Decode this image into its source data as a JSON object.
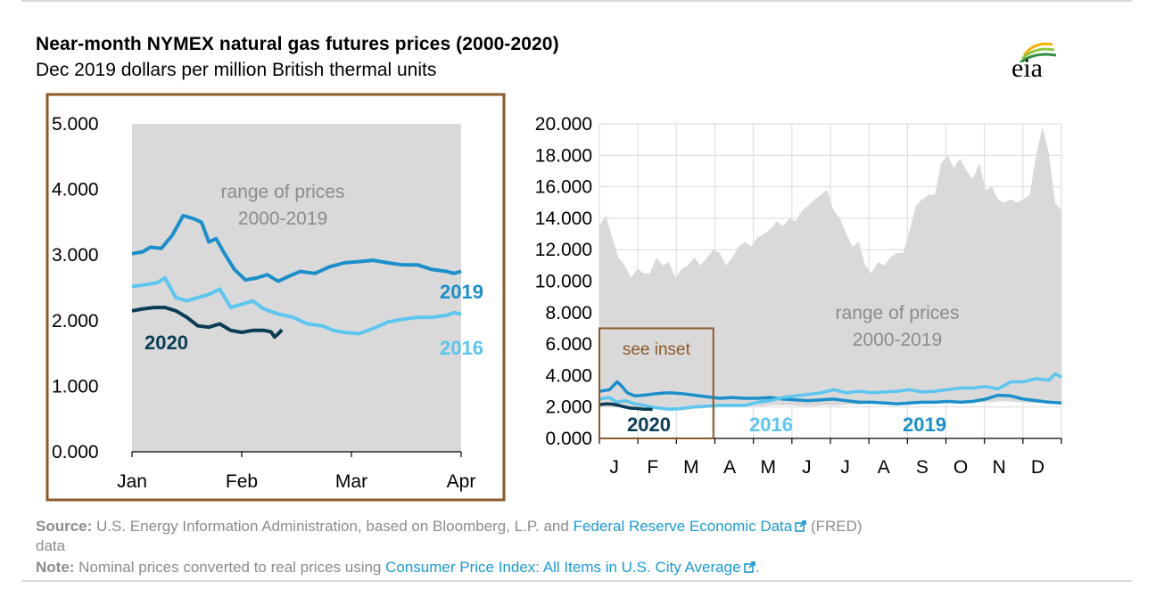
{
  "header": {
    "title": "Near-month NYMEX natural gas futures prices (2000-2020)",
    "subtitle": "Dec 2019 dollars per million British thermal units",
    "logo_text": "eia"
  },
  "colors": {
    "series_2019": "#1b8fcb",
    "series_2016": "#5bc6f0",
    "series_2020": "#0a3d55",
    "range_fill": "#d9d9d9",
    "inset_border": "#8b5a2b",
    "grid": "#d9d9d9",
    "link": "#1b9ad6"
  },
  "chart_data": [
    {
      "type": "line",
      "name": "inset",
      "xlabel": "",
      "ylabel": "",
      "x_ticks": [
        "Jan",
        "Feb",
        "Mar",
        "Apr"
      ],
      "y_ticks": [
        "0.000",
        "1.000",
        "2.000",
        "3.000",
        "4.000",
        "5.000"
      ],
      "xlim": [
        0,
        90
      ],
      "ylim": [
        0,
        5
      ],
      "range_band": {
        "label_line1": "range of prices",
        "label_line2": "2000-2019",
        "upper": 5.0,
        "lower": 0.0
      },
      "series": [
        {
          "name": "2019",
          "label": "2019",
          "x": [
            0,
            3,
            5,
            8,
            11,
            14,
            17,
            19,
            21,
            23,
            25,
            28,
            31,
            34,
            37,
            40,
            43,
            46,
            50,
            54,
            58,
            62,
            66,
            70,
            74,
            78,
            82,
            86,
            88,
            90
          ],
          "y": [
            3.02,
            3.05,
            3.12,
            3.1,
            3.3,
            3.6,
            3.55,
            3.5,
            3.2,
            3.25,
            3.05,
            2.78,
            2.62,
            2.65,
            2.7,
            2.6,
            2.68,
            2.75,
            2.72,
            2.82,
            2.88,
            2.9,
            2.92,
            2.88,
            2.85,
            2.85,
            2.78,
            2.75,
            2.72,
            2.75
          ]
        },
        {
          "name": "2016",
          "label": "2016",
          "x": [
            0,
            4,
            7,
            9,
            12,
            15,
            18,
            21,
            24,
            27,
            30,
            33,
            36,
            40,
            44,
            48,
            52,
            55,
            58,
            62,
            66,
            70,
            74,
            78,
            82,
            86,
            88,
            90
          ],
          "y": [
            2.52,
            2.55,
            2.58,
            2.65,
            2.35,
            2.3,
            2.35,
            2.4,
            2.48,
            2.2,
            2.25,
            2.3,
            2.18,
            2.1,
            2.05,
            1.95,
            1.92,
            1.85,
            1.82,
            1.8,
            1.88,
            1.98,
            2.02,
            2.05,
            2.05,
            2.08,
            2.12,
            2.1
          ]
        },
        {
          "name": "2020",
          "label": "2020",
          "x": [
            0,
            3,
            6,
            9,
            12,
            15,
            18,
            21,
            24,
            27,
            30,
            33,
            36,
            38,
            39,
            40,
            41
          ],
          "y": [
            2.15,
            2.18,
            2.2,
            2.2,
            2.15,
            2.05,
            1.92,
            1.9,
            1.95,
            1.85,
            1.82,
            1.85,
            1.85,
            1.83,
            1.75,
            1.8,
            1.86
          ]
        }
      ]
    },
    {
      "type": "line",
      "name": "full-year",
      "xlabel": "",
      "ylabel": "",
      "x_ticks": [
        "J",
        "F",
        "M",
        "A",
        "M",
        "J",
        "J",
        "A",
        "S",
        "O",
        "N",
        "D"
      ],
      "y_ticks": [
        "0.000",
        "2.000",
        "4.000",
        "6.000",
        "8.000",
        "10.000",
        "12.000",
        "14.000",
        "16.000",
        "18.000",
        "20.000"
      ],
      "xlim": [
        0,
        365
      ],
      "ylim": [
        0,
        20
      ],
      "inset_box": {
        "label": "see inset",
        "x0": 0,
        "x1": 90,
        "y0": 0,
        "y1": 7
      },
      "range_band": {
        "label_line1": "range of prices",
        "label_line2": "2000-2019",
        "x": [
          0,
          5,
          10,
          15,
          20,
          25,
          30,
          35,
          40,
          45,
          50,
          55,
          60,
          65,
          70,
          75,
          80,
          85,
          90,
          95,
          100,
          105,
          110,
          115,
          120,
          125,
          130,
          135,
          140,
          145,
          150,
          155,
          160,
          165,
          170,
          175,
          180,
          185,
          190,
          195,
          200,
          205,
          210,
          215,
          220,
          225,
          230,
          235,
          240,
          245,
          250,
          255,
          260,
          265,
          270,
          275,
          280,
          285,
          290,
          295,
          300,
          305,
          310,
          315,
          320,
          325,
          330,
          335,
          340,
          345,
          350,
          355,
          360,
          365
        ],
        "upper": [
          13.5,
          14.2,
          12.8,
          11.5,
          11.0,
          10.2,
          10.8,
          10.5,
          10.5,
          11.5,
          11.0,
          11.2,
          10.2,
          10.8,
          11.0,
          11.5,
          11.0,
          11.5,
          12.0,
          11.8,
          11.0,
          11.5,
          12.2,
          12.5,
          12.2,
          12.8,
          13.0,
          13.3,
          13.8,
          13.5,
          14.0,
          13.8,
          14.5,
          14.8,
          15.2,
          15.5,
          15.8,
          14.5,
          14.0,
          13.0,
          12.2,
          12.5,
          11.0,
          10.5,
          11.2,
          11.0,
          11.5,
          11.8,
          11.8,
          13.2,
          14.8,
          15.2,
          15.5,
          15.5,
          17.5,
          18.0,
          17.2,
          17.8,
          17.0,
          16.5,
          17.5,
          15.8,
          16.0,
          15.2,
          15.0,
          15.2,
          15.0,
          15.2,
          15.5,
          18.0,
          19.8,
          18.2,
          15.0,
          14.5
        ],
        "lower": [
          2.0,
          2.0,
          2.0,
          2.0,
          1.95,
          1.95,
          1.9,
          1.85,
          1.85,
          1.85,
          1.8,
          1.8,
          1.8,
          1.85,
          1.85,
          1.9,
          1.9,
          1.95,
          1.95,
          2.0,
          2.0,
          2.0,
          2.0,
          2.0,
          2.05,
          2.05,
          2.05,
          2.1,
          2.1,
          2.1,
          2.1,
          2.1,
          2.05,
          2.05,
          2.05,
          2.1,
          2.1,
          2.1,
          2.1,
          2.15,
          2.15,
          2.15,
          2.2,
          2.2,
          2.2,
          2.2,
          2.2,
          2.25,
          2.25,
          2.25,
          2.3,
          2.3,
          2.3,
          2.35,
          2.35,
          2.35,
          2.35,
          2.3,
          2.3,
          2.3,
          2.3,
          2.3,
          2.3,
          2.35,
          2.35,
          2.35,
          2.3,
          2.3,
          2.25,
          2.25,
          2.25,
          2.2,
          2.2,
          2.2
        ]
      },
      "series": [
        {
          "name": "2019",
          "label": "2019",
          "x": [
            0,
            8,
            14,
            18,
            22,
            28,
            35,
            45,
            55,
            65,
            75,
            85,
            95,
            105,
            115,
            125,
            135,
            145,
            155,
            165,
            175,
            185,
            195,
            205,
            215,
            225,
            235,
            245,
            255,
            265,
            275,
            285,
            295,
            305,
            315,
            325,
            335,
            345,
            355,
            365
          ],
          "y": [
            3.0,
            3.1,
            3.6,
            3.3,
            2.9,
            2.7,
            2.75,
            2.85,
            2.9,
            2.85,
            2.75,
            2.65,
            2.55,
            2.6,
            2.55,
            2.55,
            2.6,
            2.5,
            2.45,
            2.4,
            2.45,
            2.5,
            2.4,
            2.3,
            2.3,
            2.25,
            2.2,
            2.25,
            2.3,
            2.3,
            2.35,
            2.3,
            2.35,
            2.5,
            2.75,
            2.7,
            2.5,
            2.4,
            2.3,
            2.25
          ]
        },
        {
          "name": "2016",
          "label": "2016",
          "x": [
            0,
            8,
            14,
            20,
            28,
            35,
            45,
            55,
            65,
            75,
            85,
            95,
            105,
            115,
            125,
            135,
            145,
            155,
            165,
            175,
            185,
            195,
            205,
            215,
            225,
            235,
            245,
            255,
            265,
            275,
            285,
            295,
            305,
            315,
            325,
            335,
            345,
            355,
            360,
            365
          ],
          "y": [
            2.5,
            2.6,
            2.3,
            2.4,
            2.2,
            2.1,
            1.95,
            1.85,
            1.9,
            2.0,
            2.05,
            2.1,
            2.1,
            2.1,
            2.3,
            2.4,
            2.6,
            2.7,
            2.8,
            2.9,
            3.1,
            2.9,
            3.0,
            2.9,
            2.95,
            3.0,
            3.1,
            2.95,
            3.0,
            3.1,
            3.2,
            3.2,
            3.3,
            3.15,
            3.6,
            3.6,
            3.8,
            3.7,
            4.1,
            3.9
          ]
        },
        {
          "name": "2020",
          "label": "2020",
          "x": [
            0,
            5,
            10,
            15,
            20,
            25,
            30,
            35,
            40,
            42
          ],
          "y": [
            2.15,
            2.2,
            2.18,
            2.1,
            2.0,
            1.92,
            1.9,
            1.85,
            1.85,
            1.84
          ]
        }
      ]
    }
  ],
  "footer": {
    "source_label": "Source:",
    "source_text": " U.S. Energy Information Administration, based on Bloomberg, L.P. and ",
    "source_link": "Federal Reserve Economic Data",
    "source_tail": " (FRED)",
    "source_tail2": "data",
    "note_label": "Note:",
    "note_text": " Nominal prices converted to real prices using ",
    "note_link": "Consumer Price Index: All Items in U.S. City Average",
    "note_tail": "."
  }
}
